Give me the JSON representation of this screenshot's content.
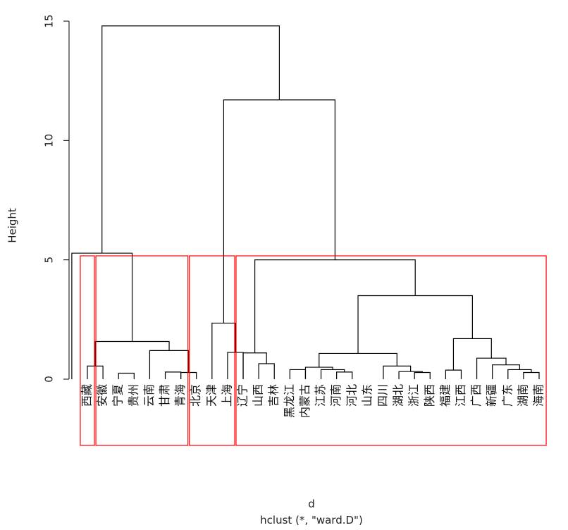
{
  "chart_data": {
    "type": "dendrogram",
    "method": "ward.D",
    "ylabel": "Height",
    "xlabel": "d",
    "subtitle": "hclust (*, \"ward.D\")",
    "ylim": [
      0,
      15
    ],
    "yticks": [
      0,
      5,
      10,
      15
    ],
    "leaves": [
      "西藏",
      "安徽",
      "宁夏",
      "贵州",
      "云南",
      "甘肃",
      "青海",
      "北京",
      "天津",
      "上海",
      "辽宁",
      "山西",
      "吉林",
      "黑龙江",
      "内蒙古",
      "江苏",
      "河南",
      "河北",
      "山东",
      "四川",
      "湖北",
      "浙江",
      "陕西",
      "福建",
      "江西",
      "广西",
      "新疆",
      "广东",
      "湖南",
      "海南"
    ],
    "merges": [
      {
        "a": 7,
        "b": 8,
        "h": 0.28
      },
      {
        "a": 3,
        "b": 4,
        "h": 0.25
      },
      {
        "a": 1,
        "b": 2,
        "h": 0.55
      },
      {
        "a": 6,
        "b": 7,
        "h": 0.3
      },
      {
        "a": 5,
        "b": "m1",
        "h": 1.2
      },
      {
        "a": "m3",
        "b": "m5",
        "h": 1.58
      },
      {
        "a": 0,
        "b": "m6",
        "h": 5.28
      },
      {
        "a": 10,
        "b": 11,
        "h": 1.12
      },
      {
        "a": 9,
        "b": "m8",
        "h": 2.35
      },
      {
        "a": 14,
        "b": 15,
        "h": 0.4
      },
      {
        "a": 12,
        "b": 13,
        "h": 0.65
      },
      {
        "a": 11,
        "b": "m11",
        "h": 1.1
      },
      {
        "a": 17,
        "b": 18,
        "h": 0.3
      },
      {
        "a": 16,
        "b": "m13",
        "h": 0.4
      },
      {
        "a": 15,
        "b": "m14",
        "h": 0.5
      },
      {
        "a": 22,
        "b": 23,
        "h": 0.28
      },
      {
        "a": 21,
        "b": "m16",
        "h": 0.32
      },
      {
        "a": 20,
        "b": "m17",
        "h": 0.55
      },
      {
        "a": "m15",
        "b": "m18",
        "h": 1.08
      },
      {
        "a": 29,
        "b": 30,
        "h": 0.28
      },
      {
        "a": 28,
        "b": "m20",
        "h": 0.4
      },
      {
        "a": 27,
        "b": "m21",
        "h": 0.6
      },
      {
        "a": 26,
        "b": "m22",
        "h": 0.88
      },
      {
        "a": 24,
        "b": 25,
        "h": 0.38
      },
      {
        "a": "m24",
        "b": "m23",
        "h": 1.7
      },
      {
        "a": "m19",
        "b": "m25",
        "h": 3.5
      },
      {
        "a": "m12",
        "b": "m26",
        "h": 5.0
      },
      {
        "a": "m9",
        "b": "m27",
        "h": 11.7
      },
      {
        "a": "m7",
        "b": "m28",
        "h": 14.8
      }
    ],
    "clusters": [
      {
        "from": 1,
        "to": 1,
        "color": "#ff0000"
      },
      {
        "from": 2,
        "to": 7,
        "color": "#ff0000"
      },
      {
        "from": 8,
        "to": 10,
        "color": "#ff0000"
      },
      {
        "from": 11,
        "to": 30,
        "color": "#ff0000"
      }
    ]
  },
  "colors": {
    "line": "#000000",
    "box": "#ff0000",
    "background": "#ffffff"
  }
}
